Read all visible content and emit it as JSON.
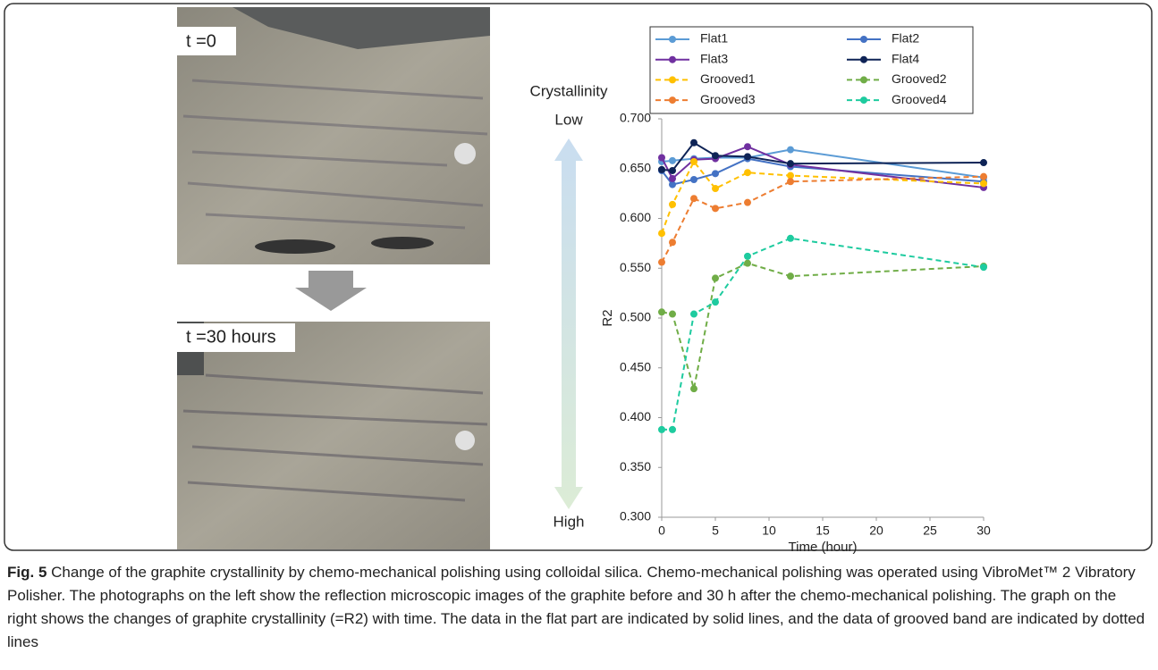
{
  "photo_labels": [
    "t =0",
    "t =30 hours"
  ],
  "scale_labels": {
    "title": "Crystallinity",
    "top": "Low",
    "bottom": "High"
  },
  "caption": {
    "label": "Fig. 5",
    "text": "Change of the graphite crystallinity by chemo-mechanical polishing using colloidal silica. Chemo-mechanical polishing was operated using VibroMet™ 2 Vibratory Polisher. The photographs on the left show the reflection microscopic images of the graphite before and 30 h after the chemo-mechanical polishing. The graph on the right shows the changes of graphite crystallinity (=R2) with time. The data in the flat part are indicated by solid lines, and the data of grooved band are indicated by dotted lines"
  },
  "chart_data": {
    "type": "line",
    "x_label": "Time (hour)",
    "y_label": "R2",
    "x": [
      0,
      1,
      3,
      5,
      8,
      12,
      30
    ],
    "xlim": [
      0,
      30
    ],
    "xticks": [
      0,
      5,
      10,
      15,
      20,
      25,
      30
    ],
    "ylim": [
      0.3,
      0.7
    ],
    "yticks": [
      {
        "value": 0.3,
        "label": "0.300"
      },
      {
        "value": 0.35,
        "label": "0.350"
      },
      {
        "value": 0.4,
        "label": "0.400"
      },
      {
        "value": 0.45,
        "label": "0.450"
      },
      {
        "value": 0.5,
        "label": "0.500"
      },
      {
        "value": 0.55,
        "label": "0.550"
      },
      {
        "value": 0.6,
        "label": "0.600"
      },
      {
        "value": 0.65,
        "label": "0.650"
      },
      {
        "value": 0.7,
        "label": "0.700"
      }
    ],
    "series": [
      {
        "name": "Flat1",
        "color": "#5b9bd5",
        "line_style": "solid",
        "values": [
          0.657,
          0.658,
          0.66,
          0.661,
          0.661,
          0.669,
          0.641
        ]
      },
      {
        "name": "Flat2",
        "color": "#4472c4",
        "line_style": "solid",
        "values": [
          0.648,
          0.634,
          0.639,
          0.645,
          0.66,
          0.652,
          0.637
        ]
      },
      {
        "name": "Flat3",
        "color": "#7030a0",
        "line_style": "solid",
        "values": [
          0.661,
          0.64,
          0.659,
          0.66,
          0.672,
          0.654,
          0.631
        ]
      },
      {
        "name": "Flat4",
        "color": "#0e2356",
        "line_style": "solid",
        "values": [
          0.649,
          0.648,
          0.676,
          0.663,
          0.662,
          0.655,
          0.656
        ]
      },
      {
        "name": "Grooved1",
        "color": "#ffc000",
        "line_style": "dashed",
        "values": [
          0.585,
          0.614,
          0.657,
          0.63,
          0.646,
          0.643,
          0.635
        ]
      },
      {
        "name": "Grooved2",
        "color": "#70ad47",
        "line_style": "dashed",
        "values": [
          0.506,
          0.504,
          0.429,
          0.54,
          0.555,
          0.542,
          0.552
        ]
      },
      {
        "name": "Grooved3",
        "color": "#ed7d31",
        "line_style": "dashed",
        "values": [
          0.556,
          0.576,
          0.62,
          0.61,
          0.616,
          0.637,
          0.642
        ]
      },
      {
        "name": "Grooved4",
        "color": "#1ecb9f",
        "line_style": "dashed",
        "values": [
          0.388,
          0.388,
          0.504,
          0.516,
          0.562,
          0.58,
          0.551
        ]
      }
    ]
  }
}
